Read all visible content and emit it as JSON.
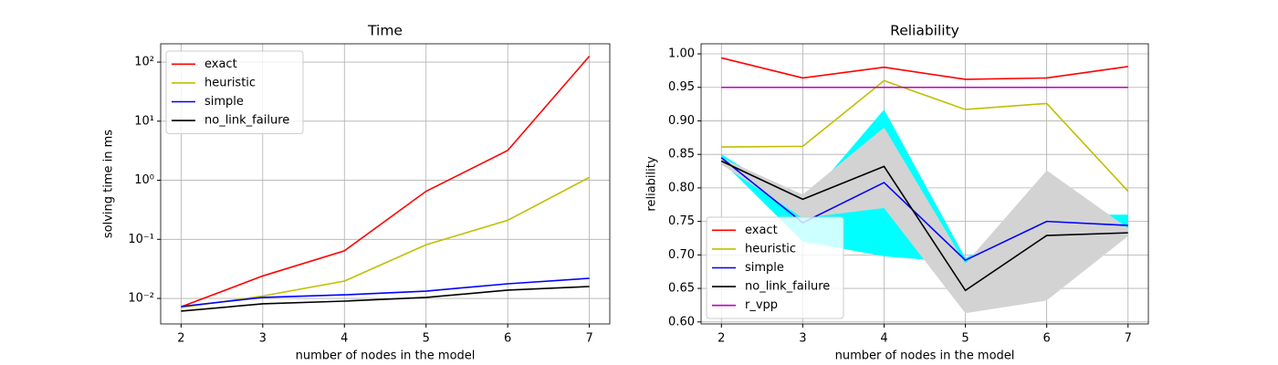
{
  "chart_data": [
    {
      "type": "line",
      "title": "Time",
      "xlabel": "number of nodes in the model",
      "ylabel": "solving time in ms",
      "x": [
        2,
        3,
        4,
        5,
        6,
        7
      ],
      "xlim": [
        1.75,
        7.25
      ],
      "xticks": [
        2,
        3,
        4,
        5,
        6,
        7
      ],
      "log_y": true,
      "ylim": [
        0.0037,
        204
      ],
      "yticks": [
        {
          "value": 0.01,
          "label": "10⁻²"
        },
        {
          "value": 0.1,
          "label": "10⁻¹"
        },
        {
          "value": 1,
          "label": "10⁰"
        },
        {
          "value": 10,
          "label": "10¹"
        },
        {
          "value": 100,
          "label": "10²"
        }
      ],
      "grid": true,
      "legend": "upper-left",
      "series": [
        {
          "name": "exact",
          "color": "#ff0000",
          "values": [
            0.0072,
            0.024,
            0.064,
            0.65,
            3.2,
            126
          ]
        },
        {
          "name": "heuristic",
          "color": "#bfbf00",
          "values": [
            0.007,
            0.011,
            0.0197,
            0.081,
            0.21,
            1.12
          ]
        },
        {
          "name": "simple",
          "color": "#0000ff",
          "values": [
            0.0073,
            0.0104,
            0.0115,
            0.0133,
            0.0177,
            0.0219
          ]
        },
        {
          "name": "no_link_failure",
          "color": "#000000",
          "values": [
            0.0061,
            0.0081,
            0.009,
            0.0104,
            0.0138,
            0.0159
          ]
        }
      ]
    },
    {
      "type": "line",
      "title": "Reliability",
      "xlabel": "number of nodes in the model",
      "ylabel": "reliability",
      "x": [
        2,
        3,
        4,
        5,
        6,
        7
      ],
      "xlim": [
        1.75,
        7.25
      ],
      "xticks": [
        2,
        3,
        4,
        5,
        6,
        7
      ],
      "log_y": false,
      "ylim": [
        0.597,
        1.015
      ],
      "yticks": [
        {
          "value": 0.6,
          "label": "0.60"
        },
        0.65,
        {
          "value": 0.7,
          "label": "0.70"
        },
        0.75,
        {
          "value": 0.8,
          "label": "0.80"
        },
        0.85,
        {
          "value": 0.9,
          "label": "0.90"
        },
        0.95,
        {
          "value": 1.0,
          "label": "1.00"
        }
      ],
      "grid": true,
      "legend": "lower-left",
      "bands": [
        {
          "color": "#00ffff",
          "lower": [
            0.84,
            0.72,
            0.698,
            0.688,
            0.74,
            0.73
          ],
          "upper": [
            0.85,
            0.775,
            0.917,
            0.695,
            0.76,
            0.76
          ]
        },
        {
          "color": "#d3d3d3",
          "lower": [
            0.835,
            0.755,
            0.77,
            0.613,
            0.632,
            0.728
          ],
          "upper": [
            0.845,
            0.79,
            0.89,
            0.687,
            0.826,
            0.74
          ]
        }
      ],
      "series": [
        {
          "name": "exact",
          "color": "#ff0000",
          "values": [
            0.994,
            0.964,
            0.98,
            0.962,
            0.964,
            0.981
          ]
        },
        {
          "name": "heuristic",
          "color": "#bfbf00",
          "values": [
            0.861,
            0.862,
            0.96,
            0.917,
            0.926,
            0.795
          ]
        },
        {
          "name": "simple",
          "color": "#0000ff",
          "values": [
            0.845,
            0.748,
            0.808,
            0.692,
            0.75,
            0.744
          ]
        },
        {
          "name": "no_link_failure",
          "color": "#000000",
          "values": [
            0.84,
            0.783,
            0.832,
            0.647,
            0.729,
            0.733
          ]
        },
        {
          "name": "r_vpp",
          "color": "#bf00bf",
          "values": [
            0.95,
            0.95,
            0.95,
            0.95,
            0.95,
            0.95
          ]
        }
      ]
    }
  ]
}
